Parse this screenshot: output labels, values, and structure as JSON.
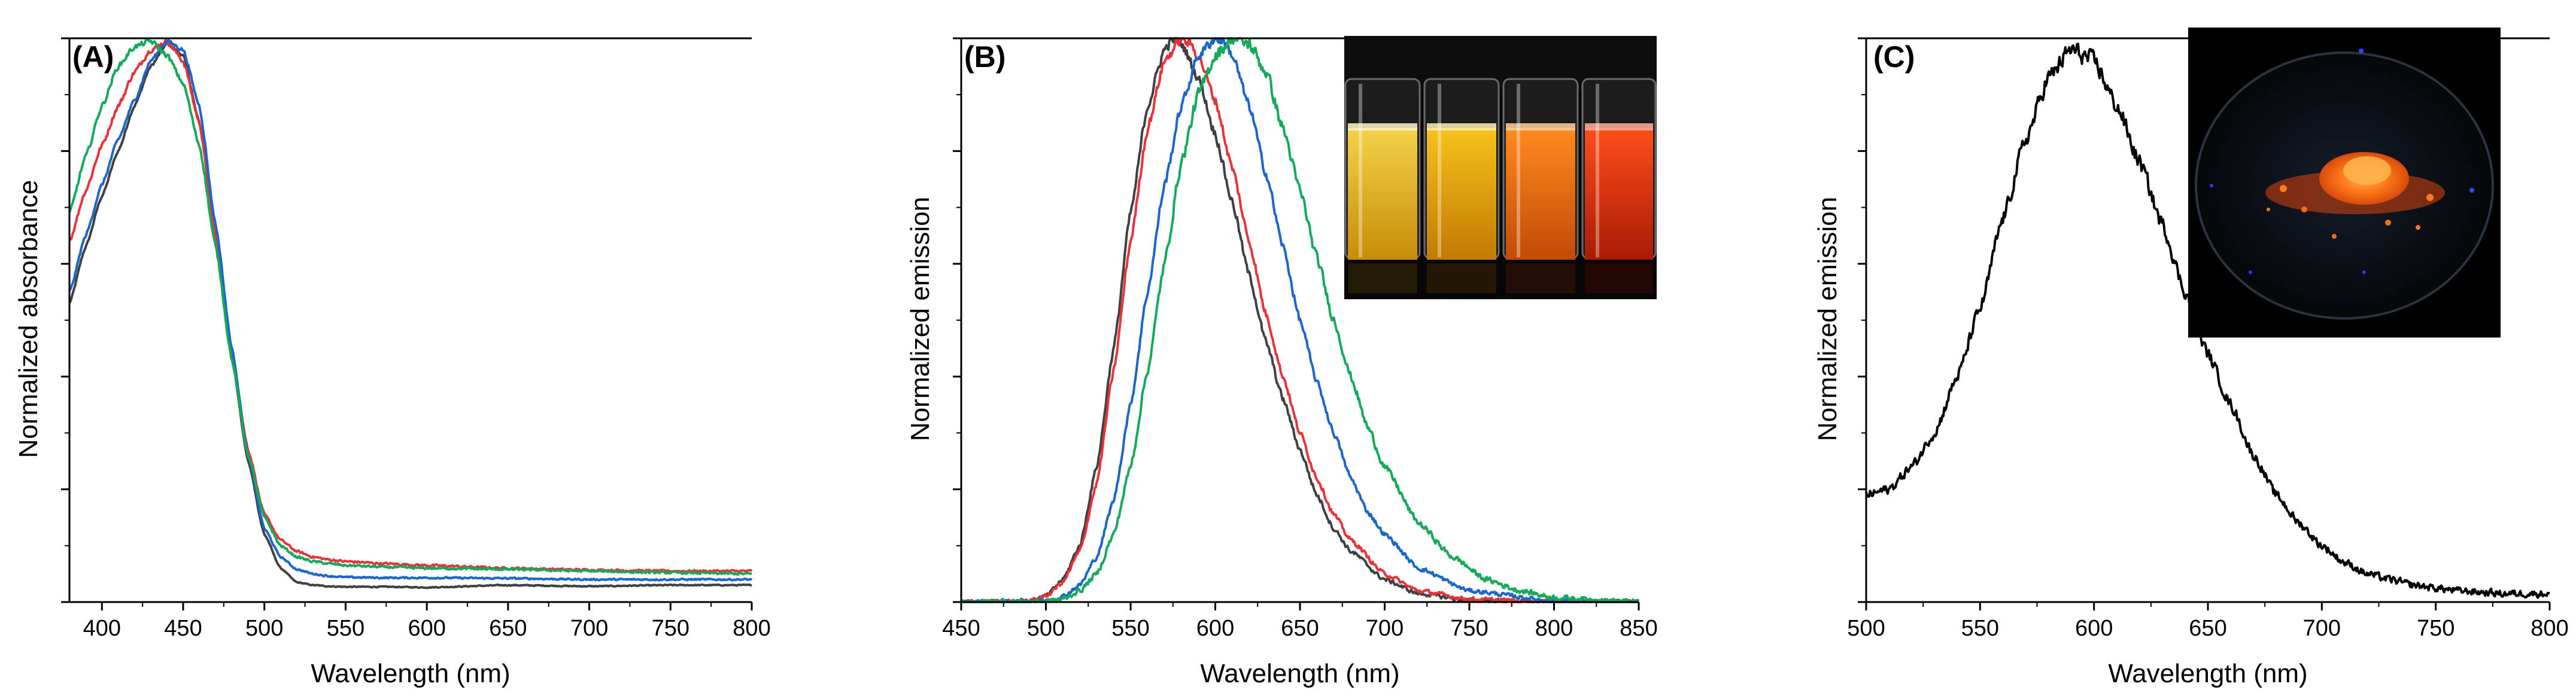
{
  "chart_data": [
    {
      "id": "A",
      "type": "line",
      "panel_label": "(A)",
      "xlabel": "Wavelength (nm)",
      "ylabel": "Normalized absorbance",
      "xlim": [
        380,
        800
      ],
      "ylim": [
        0,
        1.0
      ],
      "xticks": [
        400,
        450,
        500,
        550,
        600,
        650,
        700,
        750,
        800
      ],
      "x_tick_labels": [
        "400",
        "450",
        "500",
        "550",
        "600",
        "650",
        "700",
        "750",
        "800"
      ],
      "series": [
        {
          "name": "gray",
          "color": "#404040",
          "noise": 0.002,
          "x": [
            380,
            390,
            400,
            410,
            420,
            430,
            440,
            450,
            460,
            470,
            480,
            490,
            500,
            510,
            520,
            530,
            540,
            550,
            575,
            600,
            650,
            700,
            750,
            800
          ],
          "y": [
            0.53,
            0.63,
            0.72,
            0.8,
            0.88,
            0.95,
            0.99,
            0.97,
            0.85,
            0.65,
            0.43,
            0.25,
            0.12,
            0.06,
            0.035,
            0.03,
            0.028,
            0.027,
            0.027,
            0.026,
            0.03,
            0.028,
            0.03,
            0.03
          ]
        },
        {
          "name": "red",
          "color": "#e8333a",
          "noise": 0.004,
          "x": [
            380,
            390,
            400,
            410,
            420,
            430,
            440,
            450,
            460,
            470,
            480,
            490,
            500,
            510,
            520,
            530,
            540,
            550,
            575,
            600,
            650,
            700,
            750,
            800
          ],
          "y": [
            0.64,
            0.73,
            0.81,
            0.88,
            0.94,
            0.98,
            0.995,
            0.96,
            0.85,
            0.65,
            0.44,
            0.27,
            0.155,
            0.11,
            0.09,
            0.08,
            0.075,
            0.072,
            0.068,
            0.065,
            0.06,
            0.057,
            0.055,
            0.055
          ]
        },
        {
          "name": "blue",
          "color": "#1a66cc",
          "noise": 0.003,
          "x": [
            380,
            390,
            400,
            410,
            420,
            430,
            440,
            450,
            460,
            470,
            480,
            490,
            500,
            510,
            520,
            530,
            540,
            550,
            575,
            600,
            650,
            700,
            750,
            800
          ],
          "y": [
            0.55,
            0.65,
            0.74,
            0.82,
            0.89,
            0.96,
            0.995,
            0.98,
            0.88,
            0.67,
            0.45,
            0.26,
            0.13,
            0.08,
            0.058,
            0.05,
            0.046,
            0.044,
            0.043,
            0.043,
            0.042,
            0.04,
            0.04,
            0.04
          ]
        },
        {
          "name": "green",
          "color": "#15a95a",
          "noise": 0.004,
          "x": [
            380,
            390,
            400,
            410,
            420,
            430,
            440,
            450,
            460,
            470,
            480,
            490,
            500,
            510,
            520,
            530,
            540,
            550,
            575,
            600,
            650,
            700,
            750,
            800
          ],
          "y": [
            0.69,
            0.79,
            0.88,
            0.95,
            0.985,
            0.995,
            0.97,
            0.92,
            0.81,
            0.63,
            0.43,
            0.26,
            0.15,
            0.1,
            0.08,
            0.072,
            0.068,
            0.065,
            0.062,
            0.06,
            0.058,
            0.055,
            0.052,
            0.05
          ]
        }
      ]
    },
    {
      "id": "B",
      "type": "line",
      "panel_label": "(B)",
      "xlabel": "Wavelength (nm)",
      "ylabel": "Normalized emission",
      "xlim": [
        450,
        850
      ],
      "ylim": [
        0,
        1.0
      ],
      "xticks": [
        450,
        500,
        550,
        600,
        650,
        700,
        750,
        800,
        850
      ],
      "x_tick_labels": [
        "450",
        "500",
        "550",
        "600",
        "650",
        "700",
        "750",
        "800",
        "850"
      ],
      "inset": "photo of four vials emitting yellow, yellow-orange, orange and red light",
      "series": [
        {
          "name": "gray",
          "color": "#404040",
          "noise": 0.008,
          "x": [
            450,
            490,
            500,
            510,
            520,
            530,
            540,
            550,
            560,
            570,
            575,
            580,
            590,
            600,
            610,
            620,
            630,
            640,
            650,
            660,
            670,
            680,
            700,
            720,
            750,
            800,
            850
          ],
          "y": [
            0,
            0.002,
            0.01,
            0.04,
            0.1,
            0.24,
            0.45,
            0.69,
            0.88,
            0.98,
            1.0,
            0.99,
            0.93,
            0.83,
            0.71,
            0.58,
            0.46,
            0.36,
            0.27,
            0.19,
            0.13,
            0.09,
            0.04,
            0.015,
            0.003,
            0,
            0
          ]
        },
        {
          "name": "red",
          "color": "#e8333a",
          "noise": 0.008,
          "x": [
            450,
            490,
            500,
            510,
            520,
            530,
            540,
            550,
            560,
            570,
            580,
            585,
            590,
            600,
            610,
            620,
            630,
            640,
            650,
            660,
            670,
            680,
            700,
            720,
            750,
            800,
            850
          ],
          "y": [
            0,
            0.002,
            0.01,
            0.035,
            0.09,
            0.21,
            0.41,
            0.64,
            0.84,
            0.96,
            1.0,
            0.99,
            0.97,
            0.89,
            0.77,
            0.64,
            0.51,
            0.4,
            0.3,
            0.22,
            0.155,
            0.11,
            0.05,
            0.02,
            0.005,
            0,
            0
          ]
        },
        {
          "name": "blue",
          "color": "#1a66cc",
          "noise": 0.008,
          "x": [
            450,
            500,
            510,
            520,
            530,
            540,
            550,
            560,
            570,
            580,
            590,
            600,
            605,
            610,
            620,
            630,
            640,
            650,
            660,
            670,
            680,
            690,
            700,
            720,
            750,
            800,
            850
          ],
          "y": [
            0,
            0.002,
            0.01,
            0.03,
            0.08,
            0.18,
            0.35,
            0.55,
            0.74,
            0.88,
            0.97,
            1.0,
            0.995,
            0.97,
            0.88,
            0.76,
            0.63,
            0.5,
            0.39,
            0.3,
            0.22,
            0.16,
            0.12,
            0.06,
            0.02,
            0.002,
            0
          ]
        },
        {
          "name": "green",
          "color": "#15a95a",
          "noise": 0.01,
          "x": [
            450,
            500,
            510,
            520,
            530,
            540,
            550,
            560,
            570,
            580,
            590,
            600,
            610,
            620,
            630,
            640,
            650,
            660,
            670,
            680,
            690,
            700,
            720,
            740,
            760,
            780,
            800,
            850
          ],
          "y": [
            0,
            0.001,
            0.005,
            0.02,
            0.05,
            0.12,
            0.24,
            0.41,
            0.6,
            0.78,
            0.9,
            0.97,
            1.0,
            0.99,
            0.94,
            0.84,
            0.73,
            0.61,
            0.5,
            0.4,
            0.31,
            0.24,
            0.14,
            0.08,
            0.04,
            0.02,
            0.008,
            0
          ]
        }
      ]
    },
    {
      "id": "C",
      "type": "line",
      "panel_label": "(C)",
      "xlabel": "Wavelength (nm)",
      "ylabel": "Normalized emission",
      "xlim": [
        500,
        800
      ],
      "ylim": [
        0,
        1.0
      ],
      "xticks": [
        500,
        550,
        600,
        650,
        700,
        750,
        800
      ],
      "x_tick_labels": [
        "500",
        "550",
        "600",
        "650",
        "700",
        "750",
        "800"
      ],
      "inset": "photo of orange-emitting powder on a dark dish",
      "series": [
        {
          "name": "black",
          "color": "#000000",
          "noise": 0.014,
          "x": [
            500,
            510,
            520,
            530,
            540,
            550,
            560,
            570,
            580,
            590,
            600,
            610,
            620,
            630,
            640,
            650,
            660,
            670,
            680,
            690,
            700,
            710,
            720,
            730,
            740,
            750,
            760,
            780,
            800
          ],
          "y": [
            0.19,
            0.2,
            0.24,
            0.3,
            0.4,
            0.52,
            0.68,
            0.82,
            0.93,
            0.98,
            0.96,
            0.88,
            0.78,
            0.67,
            0.55,
            0.44,
            0.35,
            0.26,
            0.19,
            0.14,
            0.1,
            0.07,
            0.05,
            0.04,
            0.03,
            0.025,
            0.02,
            0.015,
            0.015
          ]
        }
      ]
    }
  ]
}
